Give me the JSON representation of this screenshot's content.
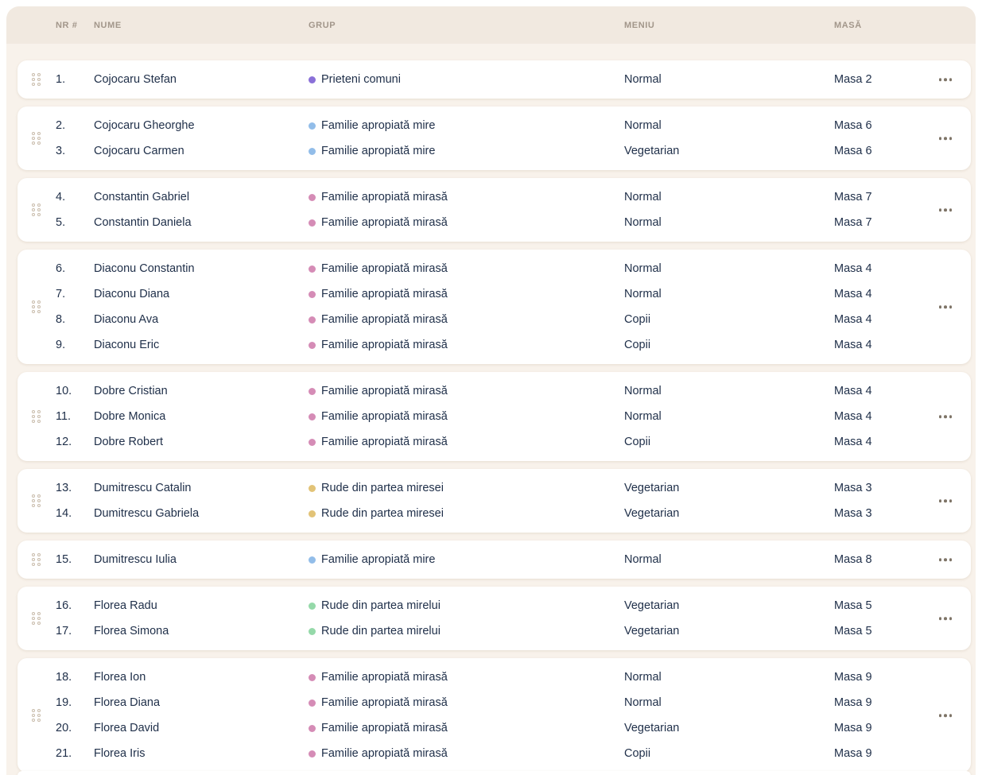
{
  "colors": {
    "page_bg": "#ffffff",
    "panel_bg": "#f8f2eb",
    "header_bg": "#f1e9e0",
    "header_text": "#a2968a",
    "row_text": "#20304a"
  },
  "icons": {
    "drag_handle": "drag-handle-icon",
    "row_menu": "more-options-icon"
  },
  "table": {
    "columns": [
      {
        "key": "nr",
        "label": "NR #"
      },
      {
        "key": "name",
        "label": "NUME"
      },
      {
        "key": "group",
        "label": "GRUP"
      },
      {
        "key": "menu",
        "label": "MENIU"
      },
      {
        "key": "table",
        "label": "MASĂ"
      }
    ]
  },
  "group_colors": {
    "Prieteni comuni": "#8a70d8",
    "Familie apropiată mire": "#92bde9",
    "Familie apropiată mirasă": "#d58cb6",
    "Rude din partea miresei": "#e2c377",
    "Rude din partea mirelui": "#95d9a9"
  },
  "cards": [
    {
      "guests": [
        {
          "nr": "1.",
          "name": "Cojocaru Stefan",
          "group": "Prieteni comuni",
          "menu": "Normal",
          "table": "Masa 2"
        }
      ]
    },
    {
      "guests": [
        {
          "nr": "2.",
          "name": "Cojocaru Gheorghe",
          "group": "Familie apropiată mire",
          "menu": "Normal",
          "table": "Masa 6"
        },
        {
          "nr": "3.",
          "name": "Cojocaru Carmen",
          "group": "Familie apropiată mire",
          "menu": "Vegetarian",
          "table": "Masa 6"
        }
      ]
    },
    {
      "guests": [
        {
          "nr": "4.",
          "name": "Constantin Gabriel",
          "group": "Familie apropiată mirasă",
          "menu": "Normal",
          "table": "Masa 7"
        },
        {
          "nr": "5.",
          "name": "Constantin Daniela",
          "group": "Familie apropiată mirasă",
          "menu": "Normal",
          "table": "Masa 7"
        }
      ]
    },
    {
      "guests": [
        {
          "nr": "6.",
          "name": "Diaconu Constantin",
          "group": "Familie apropiată mirasă",
          "menu": "Normal",
          "table": "Masa 4"
        },
        {
          "nr": "7.",
          "name": "Diaconu Diana",
          "group": "Familie apropiată mirasă",
          "menu": "Normal",
          "table": "Masa 4"
        },
        {
          "nr": "8.",
          "name": "Diaconu Ava",
          "group": "Familie apropiată mirasă",
          "menu": "Copii",
          "table": "Masa 4"
        },
        {
          "nr": "9.",
          "name": "Diaconu Eric",
          "group": "Familie apropiată mirasă",
          "menu": "Copii",
          "table": "Masa 4"
        }
      ]
    },
    {
      "guests": [
        {
          "nr": "10.",
          "name": "Dobre Cristian",
          "group": "Familie apropiată mirasă",
          "menu": "Normal",
          "table": "Masa 4"
        },
        {
          "nr": "11.",
          "name": "Dobre Monica",
          "group": "Familie apropiată mirasă",
          "menu": "Normal",
          "table": "Masa 4"
        },
        {
          "nr": "12.",
          "name": "Dobre Robert",
          "group": "Familie apropiată mirasă",
          "menu": "Copii",
          "table": "Masa 4"
        }
      ]
    },
    {
      "guests": [
        {
          "nr": "13.",
          "name": "Dumitrescu Catalin",
          "group": "Rude din partea miresei",
          "menu": "Vegetarian",
          "table": "Masa 3"
        },
        {
          "nr": "14.",
          "name": "Dumitrescu Gabriela",
          "group": "Rude din partea miresei",
          "menu": "Vegetarian",
          "table": "Masa 3"
        }
      ]
    },
    {
      "guests": [
        {
          "nr": "15.",
          "name": "Dumitrescu Iulia",
          "group": "Familie apropiată mire",
          "menu": "Normal",
          "table": "Masa 8"
        }
      ]
    },
    {
      "guests": [
        {
          "nr": "16.",
          "name": "Florea Radu",
          "group": "Rude din partea mirelui",
          "menu": "Vegetarian",
          "table": "Masa 5"
        },
        {
          "nr": "17.",
          "name": "Florea Simona",
          "group": "Rude din partea mirelui",
          "menu": "Vegetarian",
          "table": "Masa 5"
        }
      ]
    },
    {
      "guests": [
        {
          "nr": "18.",
          "name": "Florea Ion",
          "group": "Familie apropiată mirasă",
          "menu": "Normal",
          "table": "Masa 9"
        },
        {
          "nr": "19.",
          "name": "Florea Diana",
          "group": "Familie apropiată mirasă",
          "menu": "Normal",
          "table": "Masa 9"
        },
        {
          "nr": "20.",
          "name": "Florea David",
          "group": "Familie apropiată mirasă",
          "menu": "Vegetarian",
          "table": "Masa 9"
        },
        {
          "nr": "21.",
          "name": "Florea Iris",
          "group": "Familie apropiată mirasă",
          "menu": "Copii",
          "table": "Masa 9"
        }
      ]
    }
  ]
}
